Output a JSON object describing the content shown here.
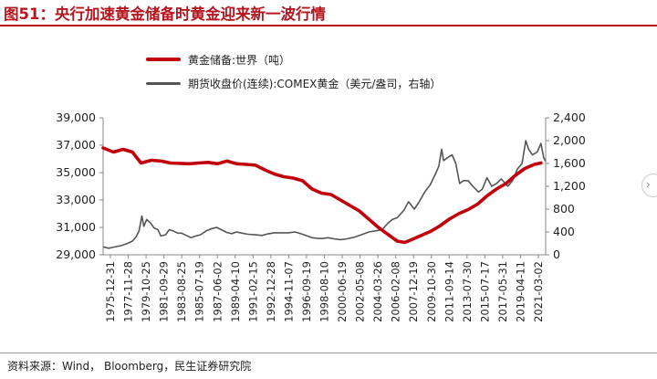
{
  "title": "图51：央行加速黄金储备时黄金迎来新一波行情",
  "source": "资料来源：Wind， Bloomberg，民生证券研究院",
  "icons": {
    "scroll": "chevron-right-icon"
  },
  "colors": {
    "title": "#b8141d",
    "reserves": "#c0000a",
    "price": "#555555"
  },
  "chart_data": {
    "type": "line",
    "legend_position": "top-left",
    "grid": false,
    "x_ticks": [
      "1975-12-31",
      "1977-11-28",
      "1979-10-25",
      "1981-09-29",
      "1983-08-25",
      "1985-07-19",
      "1987-06-02",
      "1989-04-10",
      "1991-02-15",
      "1992-12-28",
      "1994-11-07",
      "1996-09-19",
      "1998-08-10",
      "2000-06-19",
      "2002-05-08",
      "2004-03-26",
      "2006-02-08",
      "2007-12-19",
      "2009-10-30",
      "2011-09-14",
      "2013-07-30",
      "2015-07-17",
      "2017-05-31",
      "2019-04-11",
      "2021-03-02"
    ],
    "y_left": {
      "range": [
        29000,
        39000
      ],
      "ticks": [
        "29,000",
        "31,000",
        "33,000",
        "35,000",
        "37,000",
        "39,000"
      ]
    },
    "y_right": {
      "range": [
        0,
        2400
      ],
      "ticks": [
        "0",
        "400",
        "800",
        "1,200",
        "1,600",
        "2,000",
        "2,400"
      ]
    },
    "series": [
      {
        "name": "黄金储备:世界（吨）",
        "axis": "left",
        "points": [
          [
            1975.9,
            36800
          ],
          [
            1977.0,
            36500
          ],
          [
            1978.0,
            36700
          ],
          [
            1979.0,
            36500
          ],
          [
            1979.9,
            35700
          ],
          [
            1981.0,
            35900
          ],
          [
            1982.0,
            35850
          ],
          [
            1983.0,
            35700
          ],
          [
            1985.0,
            35650
          ],
          [
            1986.0,
            35700
          ],
          [
            1987.0,
            35750
          ],
          [
            1988.0,
            35650
          ],
          [
            1989.0,
            35850
          ],
          [
            1990.0,
            35650
          ],
          [
            1991.0,
            35600
          ],
          [
            1992.0,
            35550
          ],
          [
            1993.0,
            35200
          ],
          [
            1994.0,
            34900
          ],
          [
            1995.0,
            34700
          ],
          [
            1996.0,
            34600
          ],
          [
            1997.0,
            34400
          ],
          [
            1998.0,
            33800
          ],
          [
            1999.0,
            33500
          ],
          [
            2000.0,
            33400
          ],
          [
            2001.0,
            33000
          ],
          [
            2002.0,
            32600
          ],
          [
            2003.0,
            32200
          ],
          [
            2004.0,
            31600
          ],
          [
            2005.0,
            31000
          ],
          [
            2006.0,
            30500
          ],
          [
            2007.0,
            30000
          ],
          [
            2007.8,
            29900
          ],
          [
            2008.5,
            30100
          ],
          [
            2009.5,
            30400
          ],
          [
            2010.5,
            30700
          ],
          [
            2011.5,
            31100
          ],
          [
            2012.5,
            31600
          ],
          [
            2013.5,
            32000
          ],
          [
            2014.5,
            32300
          ],
          [
            2015.5,
            32700
          ],
          [
            2016.5,
            33300
          ],
          [
            2017.5,
            33800
          ],
          [
            2018.5,
            34200
          ],
          [
            2019.5,
            34800
          ],
          [
            2020.5,
            35300
          ],
          [
            2021.5,
            35600
          ],
          [
            2022.2,
            35700
          ]
        ]
      },
      {
        "name": "期货收盘价(连续):COMEX黄金（美元/盎司，右轴）",
        "axis": "right",
        "points": [
          [
            1975.9,
            140
          ],
          [
            1976.5,
            115
          ],
          [
            1977.0,
            135
          ],
          [
            1977.8,
            160
          ],
          [
            1978.5,
            200
          ],
          [
            1979.0,
            240
          ],
          [
            1979.4,
            320
          ],
          [
            1979.7,
            420
          ],
          [
            1980.0,
            680
          ],
          [
            1980.2,
            500
          ],
          [
            1980.5,
            620
          ],
          [
            1980.9,
            560
          ],
          [
            1981.3,
            470
          ],
          [
            1981.7,
            440
          ],
          [
            1982.0,
            330
          ],
          [
            1982.5,
            350
          ],
          [
            1982.9,
            440
          ],
          [
            1983.3,
            420
          ],
          [
            1983.8,
            380
          ],
          [
            1984.2,
            380
          ],
          [
            1984.7,
            340
          ],
          [
            1985.2,
            300
          ],
          [
            1985.7,
            330
          ],
          [
            1986.2,
            350
          ],
          [
            1986.8,
            420
          ],
          [
            1987.4,
            460
          ],
          [
            1987.9,
            480
          ],
          [
            1988.4,
            440
          ],
          [
            1989.0,
            390
          ],
          [
            1989.5,
            370
          ],
          [
            1990.0,
            400
          ],
          [
            1990.6,
            380
          ],
          [
            1991.2,
            360
          ],
          [
            1992.0,
            350
          ],
          [
            1992.7,
            340
          ],
          [
            1993.4,
            370
          ],
          [
            1994.0,
            385
          ],
          [
            1994.7,
            385
          ],
          [
            1995.5,
            385
          ],
          [
            1996.2,
            400
          ],
          [
            1996.8,
            370
          ],
          [
            1997.5,
            330
          ],
          [
            1998.0,
            300
          ],
          [
            1998.6,
            290
          ],
          [
            1999.0,
            285
          ],
          [
            1999.7,
            300
          ],
          [
            2000.3,
            280
          ],
          [
            2001.0,
            265
          ],
          [
            2001.7,
            280
          ],
          [
            2002.5,
            310
          ],
          [
            2003.2,
            350
          ],
          [
            2004.0,
            400
          ],
          [
            2004.7,
            420
          ],
          [
            2005.4,
            440
          ],
          [
            2006.0,
            550
          ],
          [
            2006.5,
            620
          ],
          [
            2007.0,
            650
          ],
          [
            2007.7,
            780
          ],
          [
            2008.2,
            930
          ],
          [
            2008.8,
            800
          ],
          [
            2009.3,
            920
          ],
          [
            2009.9,
            1100
          ],
          [
            2010.5,
            1230
          ],
          [
            2011.0,
            1400
          ],
          [
            2011.4,
            1550
          ],
          [
            2011.7,
            1850
          ],
          [
            2011.9,
            1650
          ],
          [
            2012.3,
            1700
          ],
          [
            2012.8,
            1750
          ],
          [
            2013.2,
            1600
          ],
          [
            2013.6,
            1250
          ],
          [
            2014.0,
            1300
          ],
          [
            2014.5,
            1300
          ],
          [
            2015.0,
            1200
          ],
          [
            2015.6,
            1100
          ],
          [
            2016.0,
            1150
          ],
          [
            2016.5,
            1350
          ],
          [
            2017.0,
            1200
          ],
          [
            2017.5,
            1250
          ],
          [
            2018.0,
            1330
          ],
          [
            2018.7,
            1200
          ],
          [
            2019.2,
            1300
          ],
          [
            2019.7,
            1500
          ],
          [
            2020.2,
            1600
          ],
          [
            2020.6,
            2000
          ],
          [
            2020.9,
            1850
          ],
          [
            2021.3,
            1750
          ],
          [
            2021.8,
            1800
          ],
          [
            2022.2,
            1950
          ],
          [
            2022.5,
            1700
          ],
          [
            2022.7,
            1640
          ]
        ]
      }
    ]
  }
}
